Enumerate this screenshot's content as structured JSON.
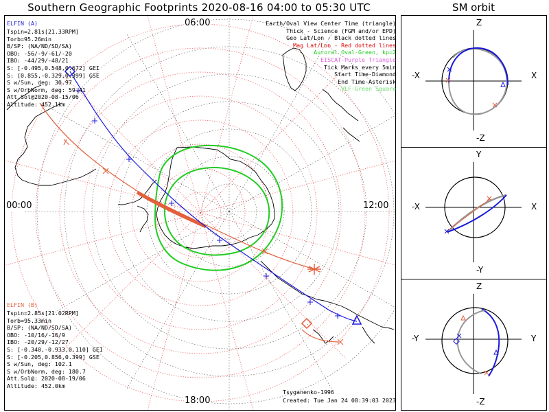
{
  "title": "Southern Geographic Footprints 2020-08-16 04:00 to 05:30 UTC",
  "sm_title": "SM orbit",
  "mlt_labels": {
    "top": "06:00",
    "left": "00:00",
    "right": "12:00",
    "bottom": "18:00"
  },
  "legend": [
    {
      "text": "Earth/Oval View Center Time (triangle)",
      "color": "#000000"
    },
    {
      "text": "Thick - Science (FGM and/or EPD)",
      "color": "#000000"
    },
    {
      "text": "Geo Lat/Lon - Black dotted lines",
      "color": "#000000"
    },
    {
      "text": "Mag Lat/Lon - Red dotted lines",
      "color": "#e00000"
    },
    {
      "text": "Auroral Oval-Green, kp=2",
      "color": "#1fcc1f"
    },
    {
      "text": "EISCAT-Purple Triangle",
      "color": "#e060e0"
    },
    {
      "text": "Tick Marks every 5min",
      "color": "#000000"
    },
    {
      "text": "Start Time-Diamond",
      "color": "#000000"
    },
    {
      "text": "End Time-Asterisk",
      "color": "#000000"
    },
    {
      "text": "VLF-Green Square",
      "color": "#66dd66"
    }
  ],
  "elfin_a": {
    "name": "ELFIN (A)",
    "lines": [
      "Tspin=2.81s[21.33RPM]",
      "Torb=95.26min",
      "B/SP: (NA/ND/SD/SA)",
      "OBO: -56/-9/-61/-20",
      "IBO: -44/29/-48/21",
      "S: [-0.495,0.548,0.672] GEI",
      "S: [0.855,-0.329,0.399] GSE",
      "S w/Sun, deg: 30.97",
      "S w/OrbNorm, deg: 59.41",
      "Att.Sol@2020-08-15/06",
      "Altitude: 452.1km"
    ]
  },
  "elfin_b": {
    "name": "ELFIN (B)",
    "lines": [
      "Tspin=2.85s[21.02RPM]",
      "Torb=95.33min",
      "B/SP: (NA/ND/SD/SA)",
      "OBO: -10/16/-16/9",
      "IBO: -20/29/-12/27",
      "S: [-0.340,-0.933,0.110] GEI",
      "S: [-0.205,0.856,0.399] GSE",
      "S w/Sun, deg: 102.1",
      "S w/OrbNorm, deg: 180.7",
      "Att.Sol@: 2020-08-19/06",
      "Altitude: 452.0km"
    ]
  },
  "credits": {
    "author": "Tsyganenko-1996",
    "created": "Created: Tue Jan 24 08:39:03 2023"
  },
  "sm_panels": [
    {
      "top": "Z",
      "bottom": "-Z",
      "left": "-X",
      "right": "X"
    },
    {
      "top": "Y",
      "bottom": "-Y",
      "left": "-X",
      "right": "X"
    },
    {
      "top": "Z",
      "bottom": "-Z",
      "left": "-Y",
      "right": "Y"
    }
  ],
  "chart_data": {
    "type": "line",
    "projection": "south polar geographic footprints",
    "series": [
      {
        "name": "ELFIN (A)",
        "color": "#1a1adc"
      },
      {
        "name": "ELFIN (B)",
        "color": "#e2603c"
      }
    ],
    "colors": {
      "elfin_a": "#1a1adc",
      "elfin_b": "#e2603c",
      "oval": "#22cc22",
      "geo_grid": "#000000",
      "mag_grid": "#e00000"
    }
  }
}
